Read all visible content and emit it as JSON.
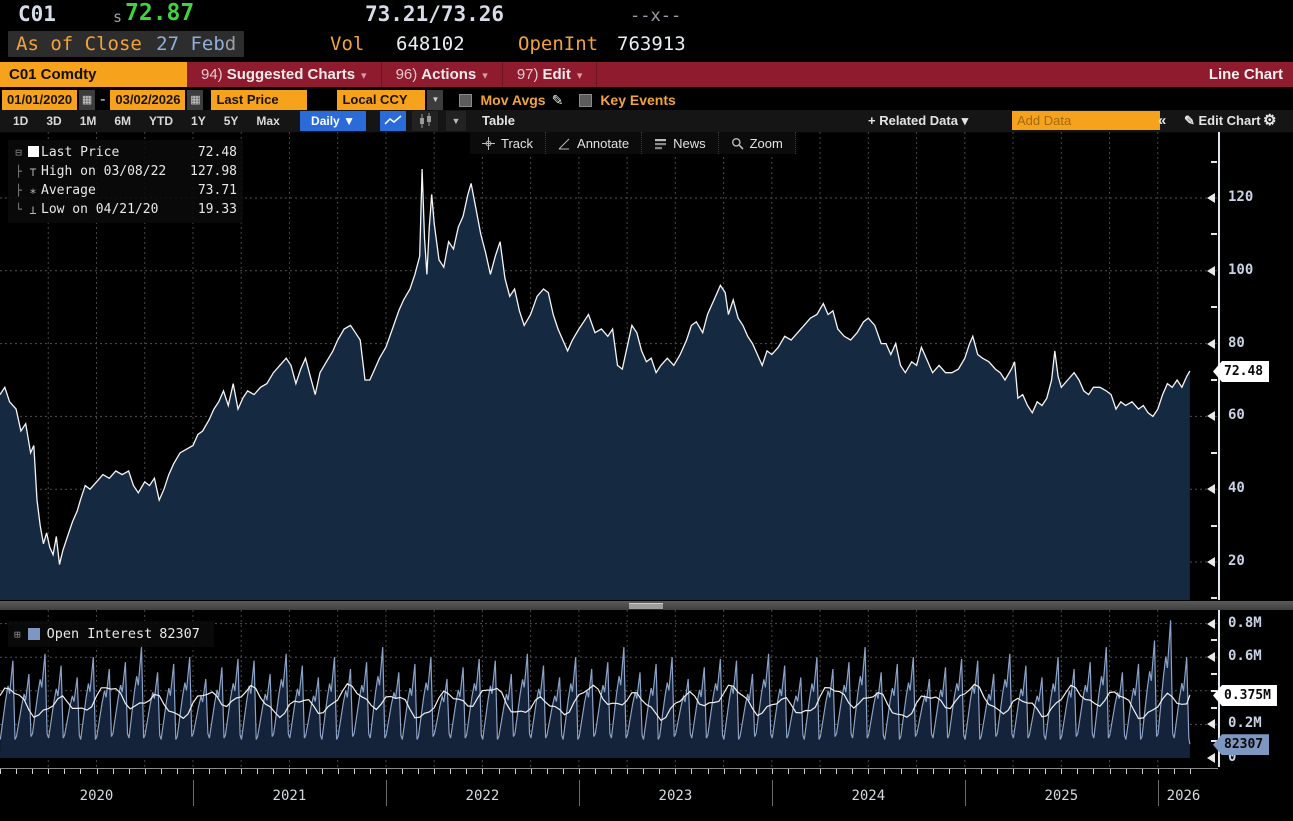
{
  "header": {
    "ticker": "C01",
    "session_flag": "s",
    "last_price": "72.87",
    "bid_ask": "73.21/73.26",
    "cross": "--x--",
    "as_of_label": "As of Close",
    "as_of_date": "27 Feb",
    "delayed_flag": "d",
    "vol_label": "Vol",
    "vol_value": "648102",
    "openint_label": "OpenInt",
    "openint_value": "763913"
  },
  "menu_bar": {
    "security": "C01 Comdty",
    "items": [
      {
        "num": "94)",
        "label": "Suggested Charts",
        "caret": "▾"
      },
      {
        "num": "96)",
        "label": "Actions",
        "caret": "▾"
      },
      {
        "num": "97)",
        "label": "Edit",
        "caret": "▾"
      }
    ],
    "view_label": "Line Chart"
  },
  "control_bar": {
    "date_from": "01/01/2020",
    "date_sep": "-",
    "date_to": "03/02/2026",
    "calendar_glyph": "▦",
    "field": "Last Price",
    "currency": "Local CCY",
    "caret": "▼",
    "mov_avgs_label": "Mov Avgs",
    "pencil_glyph": "✎",
    "key_events_label": "Key Events"
  },
  "toolbar": {
    "ranges": [
      "1D",
      "3D",
      "1M",
      "6M",
      "YTD",
      "1Y",
      "5Y",
      "Max"
    ],
    "period": "Daily ▼",
    "table_label": "Table",
    "related_data_label": "+ Related Data ▾",
    "add_data_placeholder": "Add Data",
    "collapse_label": "«",
    "edit_chart_label": "✎ Edit Chart",
    "gear_glyph": "⚙"
  },
  "chart_toolbar": {
    "items": [
      {
        "icon": "track-icon",
        "label": "Track"
      },
      {
        "icon": "annotate-icon",
        "label": "Annotate"
      },
      {
        "icon": "news-icon",
        "label": "News"
      },
      {
        "icon": "zoom-icon",
        "label": "Zoom"
      }
    ]
  },
  "main_panel": {
    "legend": {
      "rows": [
        {
          "tree": "⊟",
          "marker": "sq",
          "label": "Last Price",
          "value": "72.48"
        },
        {
          "tree": "├",
          "marker": "⊤",
          "label": "High on 03/08/22",
          "value": "127.98"
        },
        {
          "tree": "├",
          "marker": "∗",
          "label": "Average",
          "value": "73.71"
        },
        {
          "tree": "└",
          "marker": "⊥",
          "label": "Low on 04/21/20",
          "value": "19.33"
        }
      ]
    },
    "axis": {
      "major": [
        {
          "label": "120",
          "p": 120
        },
        {
          "label": "100",
          "p": 100
        },
        {
          "label": "80",
          "p": 80
        },
        {
          "label": "60",
          "p": 60
        },
        {
          "label": "40",
          "p": 40
        },
        {
          "label": "20",
          "p": 20
        }
      ],
      "minor": [
        130,
        110,
        90,
        70,
        50,
        30,
        10
      ],
      "last_tag": {
        "label": "72.48",
        "p": 72.48
      }
    }
  },
  "oi_panel": {
    "legend_label": "Open Interest",
    "legend_value": "82307",
    "axis": {
      "major": [
        {
          "label": "0.8M",
          "v": 0.8
        },
        {
          "label": "0.6M",
          "v": 0.6
        },
        {
          "label": "0.2M",
          "v": 0.2
        },
        {
          "label": "0",
          "v": 0
        }
      ],
      "minor": [
        0.7,
        0.5,
        0.4,
        0.3,
        0.1
      ],
      "tags": [
        {
          "label": "0.375M",
          "v": 0.375,
          "style": "white"
        },
        {
          "label": "82307",
          "v": 0.082,
          "style": "steel"
        }
      ]
    }
  },
  "x_axis": {
    "years": [
      {
        "label": "2020",
        "t": 6
      },
      {
        "label": "2021",
        "t": 18
      },
      {
        "label": "2022",
        "t": 30
      },
      {
        "label": "2023",
        "t": 42
      },
      {
        "label": "2024",
        "t": 54
      },
      {
        "label": "2025",
        "t": 66
      },
      {
        "label": "2026",
        "t": 73.6
      }
    ],
    "separators_t": [
      12,
      24,
      36,
      48,
      60,
      72
    ],
    "months_total": 74
  },
  "colors": {
    "accent_amber": "#f6a21d",
    "menu_red": "#8e1b2e",
    "price_green": "#3fd43f",
    "button_blue": "#2b6bd8",
    "area_fill": "#152940",
    "price_line": "#f5f5f5",
    "oi_line": "#8aa2c8",
    "oi_fill": "#142339",
    "grid": "#4f4f4f",
    "axis_label": "#c9d2e4",
    "steel_tag": "#7d97c1"
  },
  "chart_data": [
    {
      "type": "line",
      "title": "C01 Comdty Last Price (area line chart)",
      "x_unit": "months since 2020-01",
      "x_range": [
        0,
        74
      ],
      "ylabel": "Price",
      "ylim_visible": [
        9,
        138
      ],
      "grid": "dashed, horizontal every 20, vertical quarterly",
      "legend_position": "top-left",
      "stats": {
        "last": 72.48,
        "high": {
          "date": "03/08/22",
          "value": 127.98
        },
        "average": 73.71,
        "low": {
          "date": "04/21/20",
          "value": 19.33
        }
      },
      "points": [
        [
          0,
          66
        ],
        [
          0.3,
          68
        ],
        [
          0.6,
          64
        ],
        [
          1,
          62
        ],
        [
          1.3,
          56
        ],
        [
          1.6,
          58
        ],
        [
          1.9,
          50
        ],
        [
          2.1,
          52
        ],
        [
          2.3,
          37
        ],
        [
          2.5,
          30
        ],
        [
          2.7,
          25
        ],
        [
          2.9,
          28
        ],
        [
          3.1,
          24
        ],
        [
          3.3,
          22
        ],
        [
          3.5,
          27
        ],
        [
          3.7,
          19.3
        ],
        [
          3.9,
          23
        ],
        [
          4.2,
          27
        ],
        [
          4.5,
          31
        ],
        [
          4.8,
          34
        ],
        [
          5,
          37
        ],
        [
          5.3,
          41
        ],
        [
          5.6,
          40
        ],
        [
          6,
          42
        ],
        [
          6.4,
          44
        ],
        [
          6.8,
          43
        ],
        [
          7.2,
          45
        ],
        [
          7.6,
          44
        ],
        [
          8,
          45
        ],
        [
          8.3,
          41
        ],
        [
          8.6,
          39
        ],
        [
          9,
          42
        ],
        [
          9.3,
          41
        ],
        [
          9.6,
          43
        ],
        [
          9.9,
          37
        ],
        [
          10.2,
          40
        ],
        [
          10.5,
          44
        ],
        [
          10.8,
          47
        ],
        [
          11.2,
          50
        ],
        [
          11.6,
          51
        ],
        [
          12,
          52
        ],
        [
          12.3,
          55
        ],
        [
          12.6,
          56
        ],
        [
          13,
          59
        ],
        [
          13.3,
          62
        ],
        [
          13.6,
          64
        ],
        [
          13.9,
          67
        ],
        [
          14.2,
          63
        ],
        [
          14.5,
          69
        ],
        [
          14.8,
          62
        ],
        [
          15.1,
          65
        ],
        [
          15.4,
          67
        ],
        [
          15.8,
          66
        ],
        [
          16.2,
          68
        ],
        [
          16.6,
          69
        ],
        [
          17,
          72
        ],
        [
          17.4,
          74
        ],
        [
          17.8,
          76
        ],
        [
          18.1,
          74
        ],
        [
          18.4,
          69
        ],
        [
          18.7,
          73
        ],
        [
          19,
          76
        ],
        [
          19.3,
          71
        ],
        [
          19.6,
          66
        ],
        [
          19.9,
          72
        ],
        [
          20.3,
          75
        ],
        [
          20.7,
          78
        ],
        [
          21,
          81
        ],
        [
          21.4,
          84
        ],
        [
          21.8,
          85
        ],
        [
          22.1,
          83
        ],
        [
          22.4,
          81
        ],
        [
          22.7,
          70
        ],
        [
          23,
          70
        ],
        [
          23.3,
          73
        ],
        [
          23.6,
          76
        ],
        [
          24,
          79
        ],
        [
          24.4,
          84
        ],
        [
          24.8,
          89
        ],
        [
          25.1,
          92
        ],
        [
          25.5,
          95
        ],
        [
          25.8,
          99
        ],
        [
          26.1,
          104
        ],
        [
          26.25,
          127.98
        ],
        [
          26.4,
          109
        ],
        [
          26.55,
          99
        ],
        [
          26.7,
          112
        ],
        [
          26.85,
          121
        ],
        [
          27,
          113
        ],
        [
          27.3,
          103
        ],
        [
          27.6,
          101
        ],
        [
          27.9,
          108
        ],
        [
          28.2,
          106
        ],
        [
          28.5,
          112
        ],
        [
          28.8,
          115
        ],
        [
          29.1,
          121
        ],
        [
          29.3,
          124
        ],
        [
          29.6,
          117
        ],
        [
          29.9,
          110
        ],
        [
          30.2,
          105
        ],
        [
          30.5,
          99
        ],
        [
          30.8,
          104
        ],
        [
          31.1,
          108
        ],
        [
          31.4,
          98
        ],
        [
          31.7,
          93
        ],
        [
          32,
          95
        ],
        [
          32.3,
          89
        ],
        [
          32.6,
          85
        ],
        [
          33,
          88
        ],
        [
          33.4,
          93
        ],
        [
          33.8,
          95
        ],
        [
          34.1,
          94
        ],
        [
          34.4,
          88
        ],
        [
          34.7,
          84
        ],
        [
          35,
          81
        ],
        [
          35.3,
          78
        ],
        [
          35.6,
          81
        ],
        [
          36,
          84
        ],
        [
          36.3,
          86
        ],
        [
          36.6,
          88
        ],
        [
          37,
          83
        ],
        [
          37.4,
          84
        ],
        [
          37.8,
          82
        ],
        [
          38.1,
          84
        ],
        [
          38.4,
          74
        ],
        [
          38.7,
          73
        ],
        [
          39,
          79
        ],
        [
          39.3,
          85
        ],
        [
          39.6,
          83
        ],
        [
          39.9,
          78
        ],
        [
          40.2,
          75
        ],
        [
          40.5,
          76
        ],
        [
          40.8,
          72
        ],
        [
          41.1,
          74
        ],
        [
          41.5,
          76
        ],
        [
          41.9,
          74
        ],
        [
          42.3,
          77
        ],
        [
          42.7,
          81
        ],
        [
          43,
          85
        ],
        [
          43.3,
          86
        ],
        [
          43.7,
          83
        ],
        [
          44,
          88
        ],
        [
          44.4,
          92
        ],
        [
          44.8,
          96
        ],
        [
          45.1,
          94
        ],
        [
          45.3,
          88
        ],
        [
          45.6,
          92
        ],
        [
          45.9,
          87
        ],
        [
          46.2,
          85
        ],
        [
          46.5,
          82
        ],
        [
          46.8,
          80
        ],
        [
          47.1,
          77
        ],
        [
          47.4,
          74
        ],
        [
          47.7,
          78
        ],
        [
          48,
          77
        ],
        [
          48.4,
          79
        ],
        [
          48.8,
          82
        ],
        [
          49.2,
          81
        ],
        [
          49.6,
          83
        ],
        [
          50,
          85
        ],
        [
          50.4,
          87
        ],
        [
          50.8,
          88
        ],
        [
          51.2,
          91
        ],
        [
          51.5,
          88
        ],
        [
          51.8,
          89
        ],
        [
          52.1,
          84
        ],
        [
          52.5,
          82
        ],
        [
          52.9,
          81
        ],
        [
          53.3,
          83
        ],
        [
          53.7,
          86
        ],
        [
          54,
          87
        ],
        [
          54.4,
          85
        ],
        [
          54.8,
          80
        ],
        [
          55.1,
          80
        ],
        [
          55.4,
          77
        ],
        [
          55.7,
          80
        ],
        [
          56,
          74
        ],
        [
          56.3,
          72
        ],
        [
          56.7,
          75
        ],
        [
          57,
          74
        ],
        [
          57.3,
          79
        ],
        [
          57.7,
          75
        ],
        [
          58,
          72
        ],
        [
          58.4,
          74
        ],
        [
          58.8,
          72
        ],
        [
          59.2,
          72
        ],
        [
          59.6,
          73
        ],
        [
          60,
          76
        ],
        [
          60.3,
          80
        ],
        [
          60.5,
          82
        ],
        [
          60.8,
          77
        ],
        [
          61.1,
          76
        ],
        [
          61.5,
          75
        ],
        [
          61.9,
          73
        ],
        [
          62.2,
          72
        ],
        [
          62.5,
          70
        ],
        [
          62.9,
          73
        ],
        [
          63.1,
          75
        ],
        [
          63.3,
          65
        ],
        [
          63.6,
          66
        ],
        [
          63.9,
          63
        ],
        [
          64.2,
          61
        ],
        [
          64.5,
          64
        ],
        [
          64.8,
          63
        ],
        [
          65.1,
          65
        ],
        [
          65.4,
          70
        ],
        [
          65.6,
          78
        ],
        [
          65.8,
          71
        ],
        [
          66,
          68
        ],
        [
          66.4,
          70
        ],
        [
          66.8,
          72
        ],
        [
          67.1,
          70
        ],
        [
          67.4,
          67
        ],
        [
          67.7,
          66
        ],
        [
          68,
          68
        ],
        [
          68.4,
          68
        ],
        [
          68.8,
          67
        ],
        [
          69.1,
          66
        ],
        [
          69.4,
          62
        ],
        [
          69.7,
          64
        ],
        [
          70,
          63
        ],
        [
          70.4,
          64
        ],
        [
          70.8,
          62
        ],
        [
          71.1,
          63
        ],
        [
          71.4,
          61
        ],
        [
          71.7,
          60
        ],
        [
          72,
          62
        ],
        [
          72.3,
          66
        ],
        [
          72.6,
          69
        ],
        [
          72.9,
          68
        ],
        [
          73.2,
          70
        ],
        [
          73.5,
          68
        ],
        [
          73.8,
          71
        ],
        [
          74,
          72.48
        ]
      ]
    },
    {
      "type": "area",
      "title": "Open Interest (monthly contract sawtooth) with volume line",
      "x_unit": "months since 2020-01",
      "x_range": [
        0,
        74
      ],
      "ylim": [
        0,
        0.9
      ],
      "yticks": [
        "0",
        "0.2M",
        "0.4M",
        "0.6M",
        "0.8M"
      ],
      "oi_last": 82307,
      "oi_trough_base": 0.11,
      "oi_month_peaks_cycle": [
        0.58,
        0.5,
        0.62,
        0.55,
        0.48,
        0.6,
        0.53,
        0.57,
        0.66,
        0.51,
        0.56,
        0.6,
        0.47,
        0.54,
        0.59
      ],
      "oi_overrides": {
        "71": 0.7,
        "72": 0.82,
        "73": 0.6
      },
      "oi_end_value": 0.082,
      "white_line": {
        "base": 0.335,
        "amp1": 0.055,
        "freq1": 2.1,
        "amp2": 0.04,
        "freq2": 0.83,
        "phase2": 2,
        "amp3": 0.018,
        "freq3": 5.3,
        "step": 0.3,
        "end": 0.375
      }
    }
  ]
}
